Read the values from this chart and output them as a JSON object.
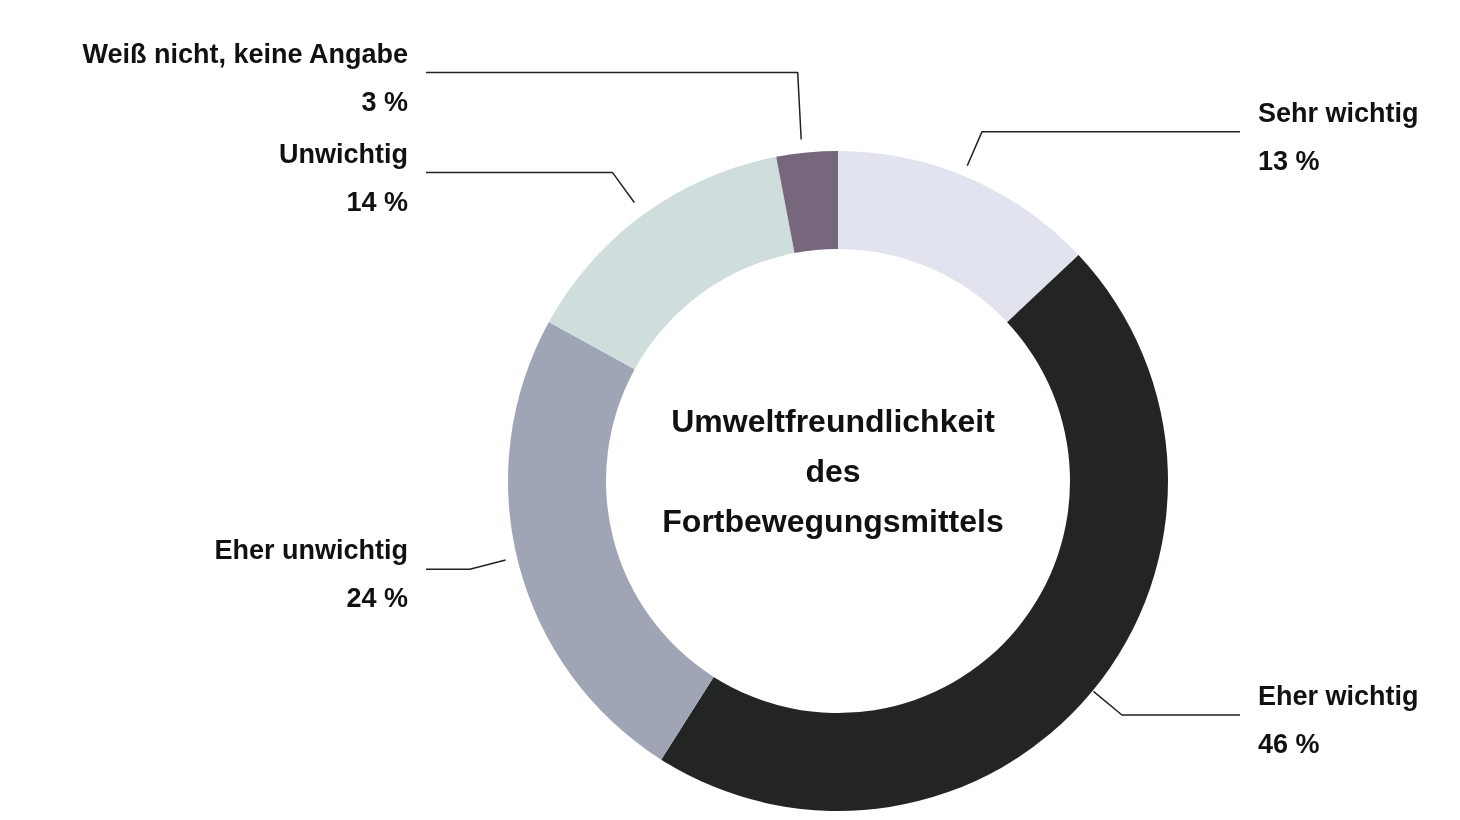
{
  "chart_data": {
    "type": "donut",
    "title": "Umweltfreundlichkeit des Fortbewegungsmittels",
    "categories": [
      "Sehr wichtig",
      "Eher wichtig",
      "Eher unwichtig",
      "Unwichtig",
      "Weiß nicht, keine Angabe"
    ],
    "values": [
      13,
      46,
      24,
      14,
      3
    ],
    "value_labels": [
      "13 %",
      "46 %",
      "24 %",
      "14 %",
      "3 %"
    ],
    "colors": [
      "#e1e3ee",
      "#232524",
      "#9fa5b5",
      "#cfdedc",
      "#76677d"
    ],
    "legend": false
  }
}
